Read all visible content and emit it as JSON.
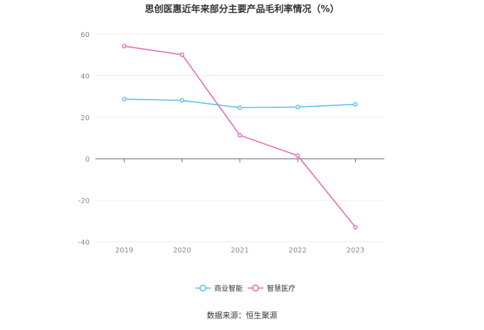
{
  "chart_data": {
    "type": "line",
    "title": "思创医惠近年来部分主要产品毛利率情况（%）",
    "categories": [
      "2019",
      "2020",
      "2021",
      "2022",
      "2023"
    ],
    "series": [
      {
        "name": "商业智能",
        "color": "#5bc0eb",
        "values": [
          28.7,
          28.1,
          24.6,
          24.9,
          26.2
        ]
      },
      {
        "name": "智慧医疗",
        "color": "#e06cbc",
        "values": [
          54.2,
          50.1,
          11.3,
          1.5,
          -33.0
        ]
      }
    ],
    "ylim": [
      -40,
      60
    ],
    "yticks": [
      60,
      40,
      20,
      0,
      -20,
      -40
    ],
    "grid": true,
    "legend": "bottom-center",
    "source": "数据来源：恒生聚源"
  }
}
